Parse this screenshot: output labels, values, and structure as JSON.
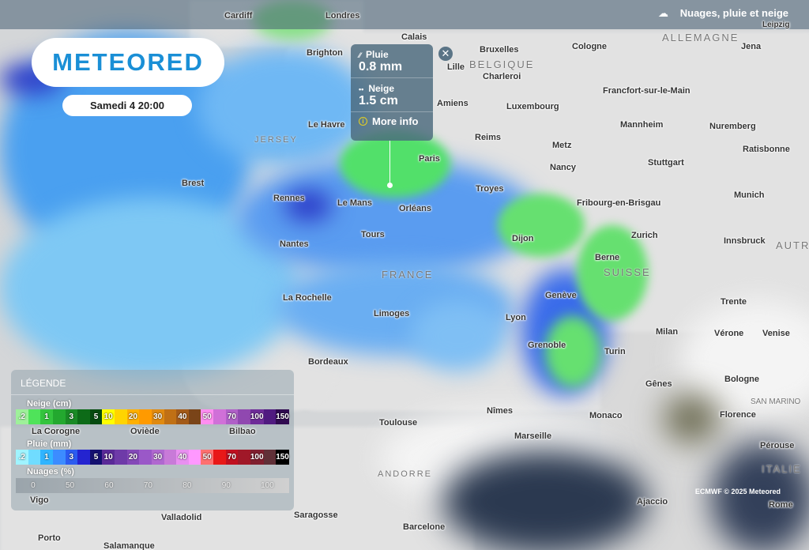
{
  "header": {
    "layer_title": "Nuages, pluie et neige",
    "layer_icon": "cloud-rain-snow-icon"
  },
  "brand": {
    "logo": "METEORED",
    "date": "Samedi 4 20:00"
  },
  "tooltip": {
    "rain_label": "Pluie",
    "rain_value": "0.8 mm",
    "snow_label": "Neige",
    "snow_value": "1.5 cm",
    "more_info": "More info"
  },
  "legend": {
    "title": "LÉGENDE",
    "snow": {
      "label": "Neige (cm)",
      "steps": [
        ".2",
        "",
        "1",
        "",
        "3",
        "",
        "5",
        "10",
        "",
        "20",
        "",
        "30",
        "",
        "40",
        "",
        "50",
        "",
        "70",
        "",
        "100",
        "",
        "150"
      ],
      "colors": [
        "#9ef09a",
        "#4fe35a",
        "#34c43e",
        "#23a82f",
        "#1a8a26",
        "#0d6b18",
        "#064a10",
        "#ffff00",
        "#ffd400",
        "#ffb000",
        "#ff9a00",
        "#e08a10",
        "#c07015",
        "#a35a18",
        "#7a4418",
        "#ff8ef0",
        "#d070d8",
        "#b060c8",
        "#9048b0",
        "#6e2c98",
        "#501a80",
        "#300a50"
      ]
    },
    "rain": {
      "label": "Pluie (mm)",
      "steps": [
        ".2",
        "",
        "1",
        "",
        "3",
        "",
        "5",
        "10",
        "",
        "20",
        "",
        "30",
        "",
        "40",
        "",
        "50",
        "",
        "70",
        "",
        "100",
        "",
        "150"
      ],
      "colors": [
        "#a0f4ff",
        "#70dcff",
        "#30b4ff",
        "#3c8cff",
        "#2c5cf0",
        "#2424d0",
        "#141070",
        "#5a2a98",
        "#6e3aa8",
        "#8448b8",
        "#9a58c8",
        "#b068d0",
        "#c87ad8",
        "#e890f0",
        "#ff98ff",
        "#ff7070",
        "#e81818",
        "#c01020",
        "#a01828",
        "#802030",
        "#603038",
        "#000000"
      ]
    },
    "clouds": {
      "label": "Nuages (%)",
      "steps": [
        "0",
        "50",
        "60",
        "70",
        "80",
        "90",
        "100"
      ]
    }
  },
  "map": {
    "cities": [
      "Cardiff",
      "Londres",
      "Brighton",
      "Calais",
      "Bruxelles",
      "Cologne",
      "Lille",
      "Charleroi",
      "Amiens",
      "Le Havre",
      "Luxembourg",
      "Reims",
      "Paris",
      "Metz",
      "Brest",
      "Rennes",
      "Le Mans",
      "Orléans",
      "Troyes",
      "Nancy",
      "Stuttgart",
      "Nantes",
      "Tours",
      "Dijon",
      "Zurich",
      "Berne",
      "Genève",
      "La Rochelle",
      "Limoges",
      "Lyon",
      "Grenoble",
      "Bordeaux",
      "Turin",
      "Milan",
      "Toulouse",
      "Nîmes",
      "Marseille",
      "Monaco",
      "Gênes",
      "Bilbao",
      "La Corogne",
      "Oviède",
      "Valladolid",
      "Saragosse",
      "Barcelone",
      "Porto",
      "Salamanque",
      "Ajaccio",
      "Rome",
      "Florence",
      "Bologne",
      "Vérone",
      "Venise",
      "Trente",
      "Innsbruck",
      "Munich",
      "Ratisbonne",
      "Nuremberg",
      "Francfort-sur-le-Main",
      "Mannheim",
      "Fribourg-en-Brisgau",
      "Jena",
      "Leipzig",
      "Pérouse",
      "Vigo"
    ],
    "countries": [
      "ALLEMAGNE",
      "BELGIQUE",
      "FRANCE",
      "SUISSE",
      "ANDORRE",
      "JERSEY",
      "SAN MARINO",
      "ITALIE",
      "AUTR"
    ]
  },
  "credit": "ECMWF © 2025 Meteored"
}
